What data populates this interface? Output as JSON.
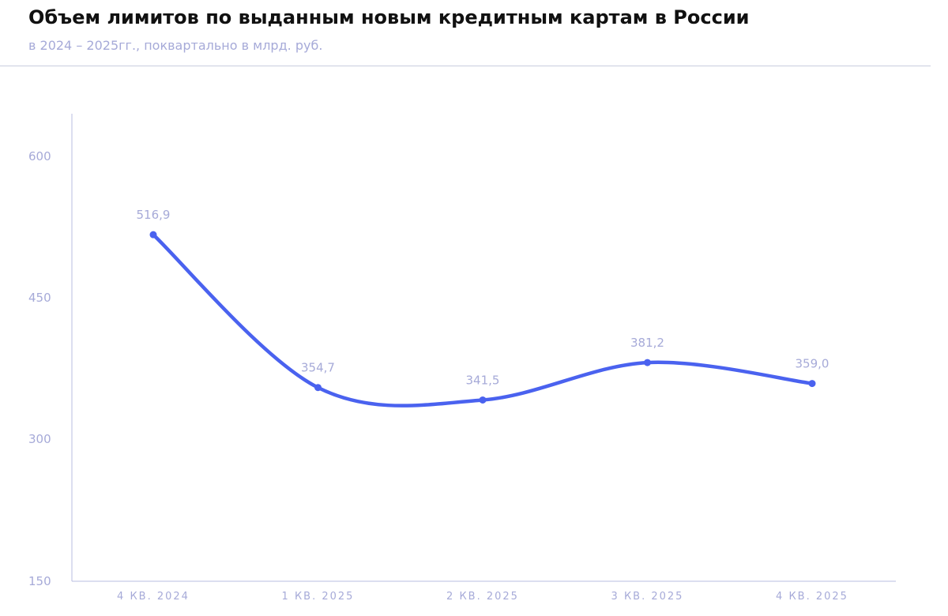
{
  "header": {
    "title": "Объем лимитов по выданным новым кредитным картам в России",
    "subtitle": "в 2024 – 2025гг., поквартально в млрд. руб."
  },
  "colors": {
    "line": "#4a62ef",
    "axis": "#b8bce0",
    "tick_text": "#a6aad8",
    "title": "#111111"
  },
  "chart_data": {
    "type": "line",
    "title": "Объем лимитов по выданным новым кредитным картам в России",
    "subtitle": "в 2024 – 2025гг., поквартально в млрд. руб.",
    "categories": [
      "4 КВ. 2024",
      "1 КВ. 2025",
      "2 КВ. 2025",
      "3 КВ. 2025",
      "4 КВ. 2025"
    ],
    "values": [
      516.9,
      354.7,
      341.5,
      381.2,
      359.0
    ],
    "data_labels": [
      "516,9",
      "354,7",
      "341,5",
      "381,2",
      "359,0"
    ],
    "yticks": [
      150,
      300,
      450,
      600
    ],
    "ylim": [
      150,
      650
    ],
    "xlabel": "",
    "ylabel": "",
    "grid": false,
    "legend": "none",
    "smooth": true
  }
}
